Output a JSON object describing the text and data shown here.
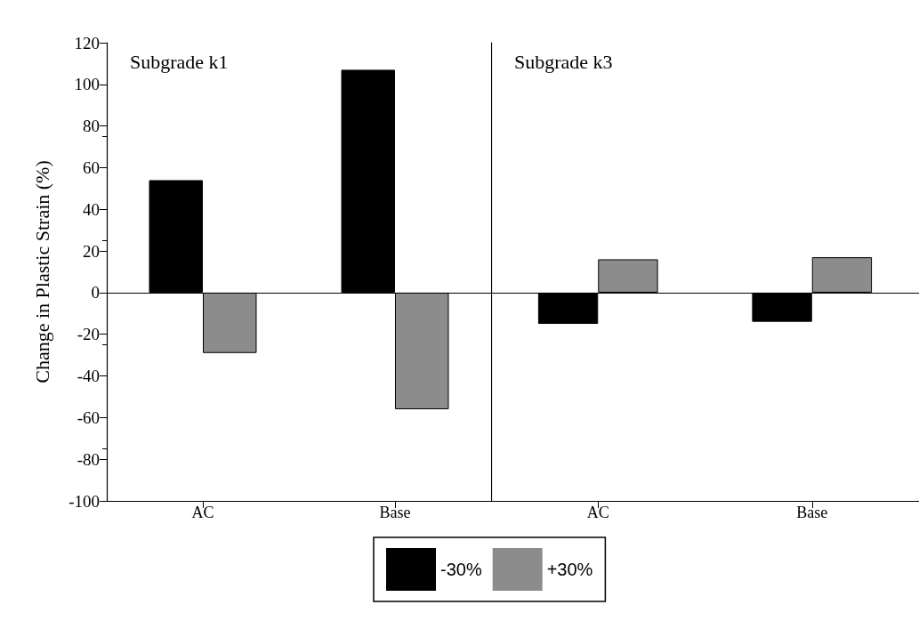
{
  "chart_data": [
    {
      "type": "bar",
      "ylabel": "Change in Plastic Strain (%)",
      "annotations": [
        "Subgrade k1"
      ],
      "categories": [
        "AC",
        "Base"
      ],
      "ylim": [
        -100,
        120
      ],
      "yticks": [
        -100,
        -80,
        -60,
        -40,
        -20,
        0,
        20,
        40,
        60,
        80,
        100,
        120
      ],
      "legend": "bottom",
      "ref_lines": [
        {
          "axis": "y",
          "value": 0,
          "color": "#000000"
        }
      ],
      "series": [
        {
          "name": "-30%",
          "color": "#000000",
          "values": [
            54,
            107
          ]
        },
        {
          "name": "+30%",
          "color": "#8c8c8c",
          "values": [
            -29,
            -56
          ]
        }
      ]
    },
    {
      "type": "bar",
      "annotations": [
        "Subgrade k3"
      ],
      "categories": [
        "AC",
        "Base"
      ],
      "ylim": [
        -100,
        120
      ],
      "yticks": [
        -100,
        -80,
        -60,
        -40,
        -20,
        0,
        20,
        40,
        60,
        80,
        100,
        120
      ],
      "tick_labels": "x",
      "ref_lines": [
        {
          "axis": "y",
          "value": 0,
          "color": "#000000"
        }
      ],
      "series": [
        {
          "color": "#000000",
          "values": [
            -15,
            -14
          ]
        },
        {
          "color": "#8c8c8c",
          "values": [
            16,
            17
          ]
        }
      ]
    }
  ]
}
